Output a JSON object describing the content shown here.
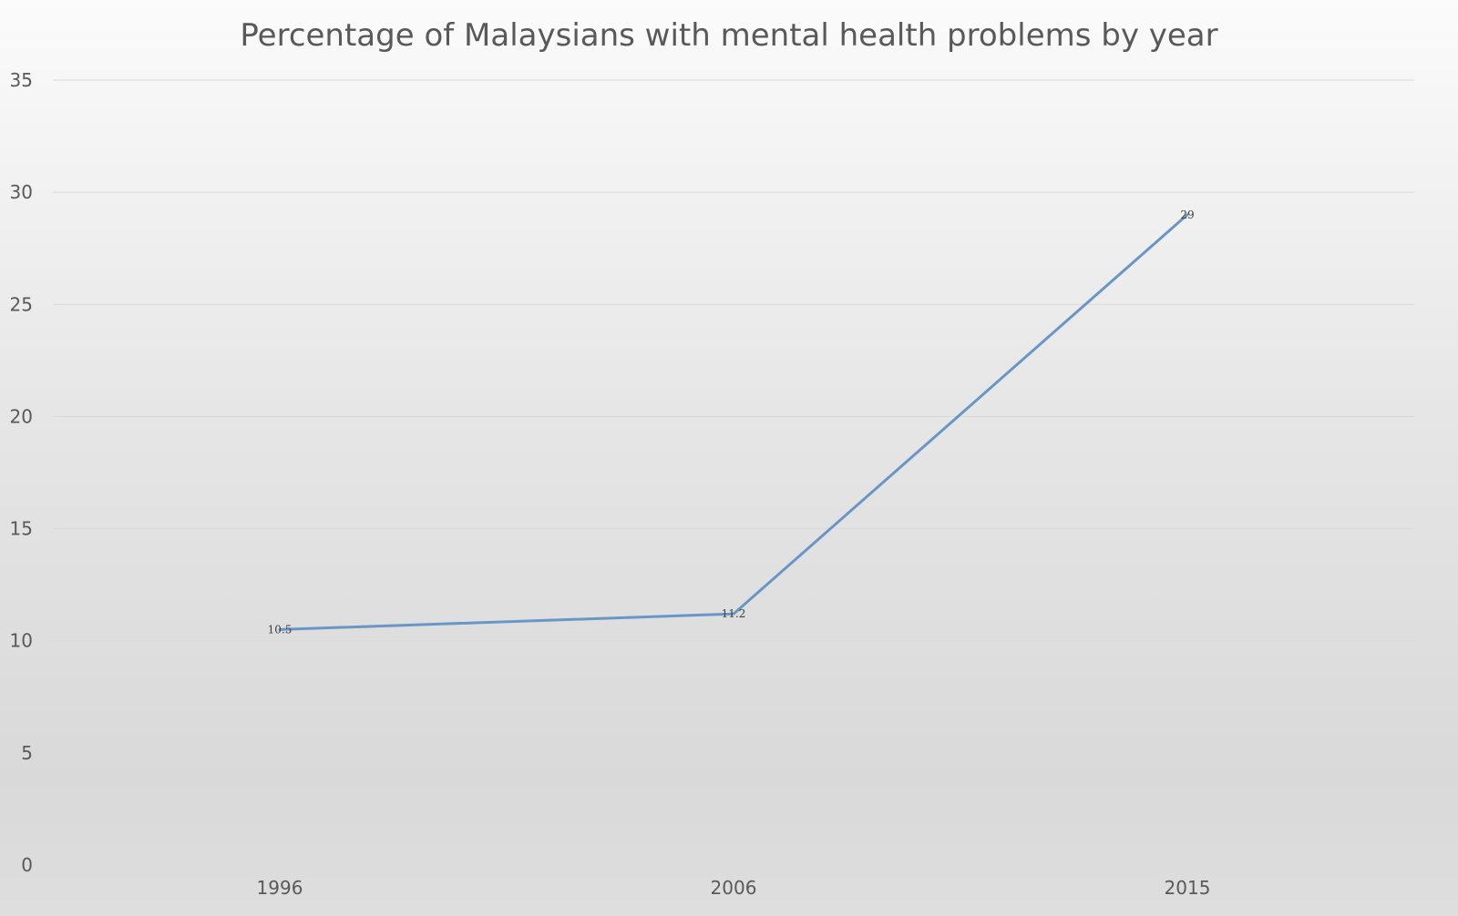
{
  "chart_data": {
    "type": "line",
    "title": "Percentage of Malaysians with mental health problems by year",
    "xlabel": "",
    "ylabel": "",
    "categories": [
      "1996",
      "2006",
      "2015"
    ],
    "series": [
      {
        "values": [
          10.5,
          11.2,
          29
        ],
        "color": "#6a96c6"
      }
    ],
    "data_labels": [
      "10.5",
      "11.2",
      "29"
    ],
    "ylim": [
      0,
      35
    ],
    "y_ticks": [
      0,
      5,
      10,
      15,
      20,
      25,
      30,
      35
    ],
    "grid": true,
    "legend": "none",
    "background": "light-grey-gradient"
  }
}
